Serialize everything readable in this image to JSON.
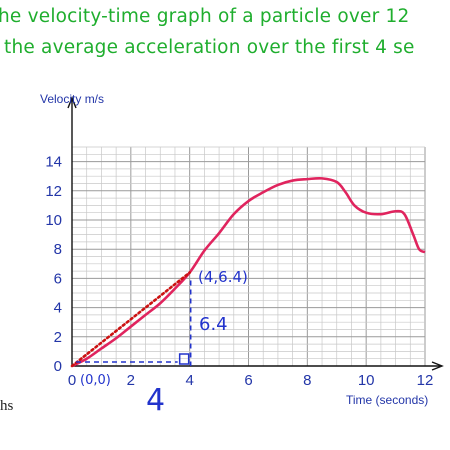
{
  "question": {
    "line1": "he velocity-time graph of a particle over 12",
    "line2": " the average acceleration over the first 4 se"
  },
  "stray_text": "hs",
  "chart_data": {
    "type": "line",
    "ylabel": "Velocity m/s",
    "xlabel": "Time (seconds)",
    "xlim": [
      0,
      12
    ],
    "ylim": [
      0,
      15
    ],
    "x_ticks": [
      "0",
      "2",
      "4",
      "6",
      "8",
      "10",
      "12"
    ],
    "y_ticks": [
      "0",
      "2",
      "4",
      "6",
      "8",
      "10",
      "12",
      "14"
    ],
    "grid": true,
    "series": [
      {
        "points": [
          [
            0,
            0
          ],
          [
            0.5,
            0.5
          ],
          [
            1,
            1.2
          ],
          [
            1.5,
            1.9
          ],
          [
            2,
            2.7
          ],
          [
            2.5,
            3.5
          ],
          [
            3,
            4.3
          ],
          [
            3.5,
            5.3
          ],
          [
            4,
            6.4
          ],
          [
            4.5,
            7.9
          ],
          [
            5,
            9.1
          ],
          [
            5.5,
            10.4
          ],
          [
            6,
            11.3
          ],
          [
            6.5,
            11.9
          ],
          [
            7,
            12.4
          ],
          [
            7.5,
            12.7
          ],
          [
            8,
            12.8
          ],
          [
            8.5,
            12.85
          ],
          [
            9,
            12.6
          ],
          [
            9.3,
            11.9
          ],
          [
            9.6,
            11.0
          ],
          [
            10,
            10.5
          ],
          [
            10.5,
            10.4
          ],
          [
            11,
            10.6
          ],
          [
            11.3,
            10.4
          ],
          [
            11.6,
            9.0
          ],
          [
            11.8,
            8.0
          ],
          [
            12,
            7.8
          ]
        ],
        "color": "#e0245e"
      }
    ],
    "chord": {
      "from": [
        0,
        0
      ],
      "to": [
        4,
        6.4
      ],
      "color": "#cc1111"
    },
    "annotations": {
      "point_end": "(4,6.4)",
      "point_start": "(0,0)",
      "rise": "6.4",
      "run": "4"
    }
  }
}
